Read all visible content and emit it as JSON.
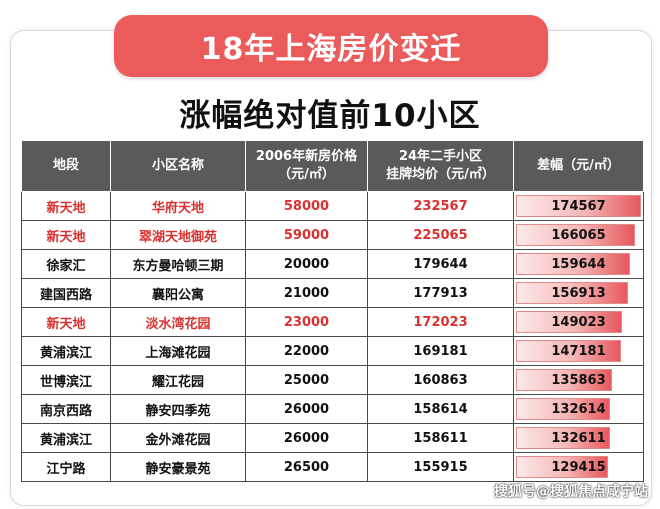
{
  "banner_title": "18年上海房价变迁",
  "subtitle": "涨幅绝对值前10小区",
  "columns": [
    {
      "line1": "地段",
      "line2": ""
    },
    {
      "line1": "小区名称",
      "line2": ""
    },
    {
      "line1": "2006年新房价格",
      "line2": "（元/㎡）"
    },
    {
      "line1": "24年二手小区",
      "line2": "挂牌均价（元/㎡）"
    },
    {
      "line1": "差幅（元/㎡）",
      "line2": ""
    }
  ],
  "rows": [
    {
      "area": "新天地",
      "name": "华府天地",
      "price2006": "58000",
      "price2024": "232567",
      "diff": "174567",
      "diff_value": 174567,
      "highlight": true
    },
    {
      "area": "新天地",
      "name": "翠湖天地御苑",
      "price2006": "59000",
      "price2024": "225065",
      "diff": "166065",
      "diff_value": 166065,
      "highlight": true
    },
    {
      "area": "徐家汇",
      "name": "东方曼哈顿三期",
      "price2006": "20000",
      "price2024": "179644",
      "diff": "159644",
      "diff_value": 159644,
      "highlight": false
    },
    {
      "area": "建国西路",
      "name": "襄阳公寓",
      "price2006": "21000",
      "price2024": "177913",
      "diff": "156913",
      "diff_value": 156913,
      "highlight": false
    },
    {
      "area": "新天地",
      "name": "淡水湾花园",
      "price2006": "23000",
      "price2024": "172023",
      "diff": "149023",
      "diff_value": 149023,
      "highlight": true
    },
    {
      "area": "黄浦滨江",
      "name": "上海滩花园",
      "price2006": "22000",
      "price2024": "169181",
      "diff": "147181",
      "diff_value": 147181,
      "highlight": false
    },
    {
      "area": "世博滨江",
      "name": "耀江花园",
      "price2006": "25000",
      "price2024": "160863",
      "diff": "135863",
      "diff_value": 135863,
      "highlight": false
    },
    {
      "area": "南京西路",
      "name": "静安四季苑",
      "price2006": "26000",
      "price2024": "158614",
      "diff": "132614",
      "diff_value": 132614,
      "highlight": false
    },
    {
      "area": "黄浦滨江",
      "name": "金外滩花园",
      "price2006": "26000",
      "price2024": "158611",
      "diff": "132611",
      "diff_value": 132611,
      "highlight": false
    },
    {
      "area": "江宁路",
      "name": "静安豪景苑",
      "price2006": "26500",
      "price2024": "155915",
      "diff": "129415",
      "diff_value": 129415,
      "highlight": false
    }
  ],
  "bar_max": 174567,
  "watermark": "搜狐号@搜狐焦点咸宁站",
  "colors": {
    "banner": "#ec5b5b",
    "header": "#5a5a5a",
    "highlight_text": "#d8312f",
    "bar_strong": "#e7585d"
  }
}
